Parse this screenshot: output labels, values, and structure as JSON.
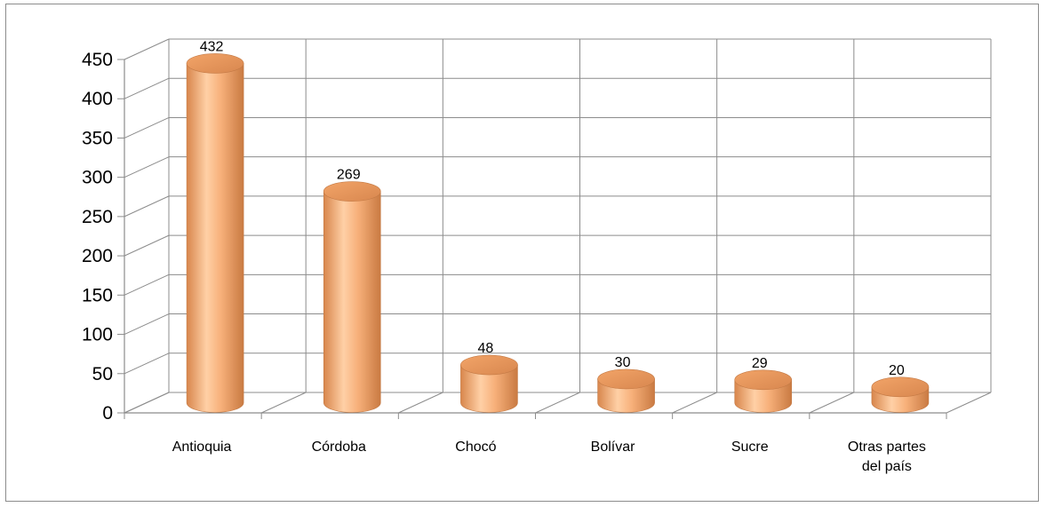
{
  "chart_data": {
    "type": "bar",
    "style": "3d-cylinder",
    "categories": [
      "Antioquia",
      "Córdoba",
      "Chocó",
      "Bolívar",
      "Sucre",
      "Otras partes del país"
    ],
    "category_lines": [
      [
        "Antioquia"
      ],
      [
        "Córdoba"
      ],
      [
        "Chocó"
      ],
      [
        "Bolívar"
      ],
      [
        "Sucre"
      ],
      [
        "Otras partes",
        "del país"
      ]
    ],
    "values": [
      432,
      269,
      48,
      30,
      29,
      20
    ],
    "data_labels": [
      "432",
      "269",
      "48",
      "30",
      "29",
      "20"
    ],
    "ylim": [
      0,
      450
    ],
    "yticks": [
      0,
      50,
      100,
      150,
      200,
      250,
      300,
      350,
      400,
      450
    ],
    "grid": true,
    "legend": "none",
    "bar_color": "#f7b07a"
  }
}
